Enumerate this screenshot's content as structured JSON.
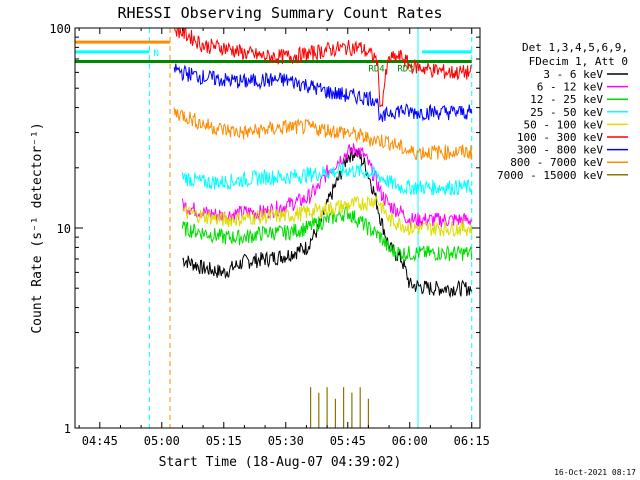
{
  "chart_data": {
    "type": "line",
    "title": "RHESSI Observing Summary Count Rates",
    "xlabel": "Start Time (18-Aug-07 04:39:02)",
    "ylabel": "Count Rate (s⁻¹ detector⁻¹)",
    "yscale": "log",
    "ylim": [
      1,
      100
    ],
    "xlim_minutes": [
      "04:39",
      "06:17"
    ],
    "x_ticks": [
      "04:45",
      "05:00",
      "05:15",
      "05:30",
      "05:45",
      "06:00",
      "06:15"
    ],
    "x_tick_minutes": [
      285,
      300,
      315,
      330,
      345,
      360,
      375
    ],
    "y_ticks": [
      "1",
      "10",
      "100"
    ],
    "y_tick_values": [
      1,
      10,
      100
    ],
    "legend": {
      "position": "right",
      "header": [
        "Det 1,3,4,5,6,9,",
        "FDecim 1, Att 0"
      ],
      "entries": [
        {
          "label": "3 - 6 keV",
          "color": "#000000"
        },
        {
          "label": "6 - 12 keV",
          "color": "#ff00ff"
        },
        {
          "label": "12 - 25 keV",
          "color": "#00dd00"
        },
        {
          "label": "25 - 50 keV",
          "color": "#00ffff"
        },
        {
          "label": "50 - 100 keV",
          "color": "#dddd00"
        },
        {
          "label": "100 - 300 keV",
          "color": "#ff0000"
        },
        {
          "label": "300 - 800 keV",
          "color": "#0000ff"
        },
        {
          "label": "800 - 7000 keV",
          "color": "#ff8c00"
        },
        {
          "label": "7000 - 15000 keV",
          "color": "#8b7500"
        }
      ]
    },
    "series": [
      {
        "label": "3 - 6 keV",
        "color": "#000000",
        "x": [
          305,
          310,
          315,
          320,
          325,
          330,
          335,
          338,
          340,
          343,
          345,
          347,
          349,
          351,
          353,
          355,
          358,
          360,
          365,
          370,
          375
        ],
        "y": [
          7,
          6.3,
          6,
          6.8,
          7,
          7.3,
          8,
          10,
          13,
          18,
          23,
          24,
          21,
          16,
          11,
          8,
          7,
          5.2,
          5,
          5,
          5
        ]
      },
      {
        "label": "6 - 12 keV",
        "color": "#ff00ff",
        "x": [
          305,
          310,
          315,
          320,
          325,
          330,
          335,
          338,
          340,
          343,
          345,
          347,
          349,
          351,
          353,
          355,
          358,
          360,
          365,
          370,
          375
        ],
        "y": [
          13,
          12,
          11.5,
          12,
          12,
          13,
          14,
          16,
          19,
          22,
          24,
          25,
          23,
          19,
          15,
          13,
          12,
          11,
          11,
          11,
          11
        ]
      },
      {
        "label": "12 - 25 keV",
        "color": "#00dd00",
        "x": [
          305,
          310,
          315,
          320,
          325,
          330,
          335,
          340,
          345,
          350,
          353,
          355,
          358,
          360,
          365,
          370,
          375
        ],
        "y": [
          10,
          9.5,
          9,
          9,
          9.5,
          9.5,
          10,
          11,
          12,
          10,
          9,
          7.8,
          7.5,
          7.5,
          7.5,
          7.5,
          7.5
        ]
      },
      {
        "label": "25 - 50 keV",
        "color": "#00ffff",
        "x": [
          305,
          310,
          315,
          320,
          325,
          330,
          335,
          340,
          345,
          350,
          353,
          355,
          358,
          360,
          365,
          370,
          375
        ],
        "y": [
          18,
          17,
          17,
          17.5,
          18,
          18,
          18.5,
          19,
          19.5,
          19,
          18,
          17,
          16,
          16,
          16,
          16,
          16
        ]
      },
      {
        "label": "50 - 100 keV",
        "color": "#dddd00",
        "x": [
          305,
          310,
          315,
          320,
          325,
          330,
          335,
          340,
          345,
          350,
          352,
          355,
          358,
          360,
          365,
          370,
          375
        ],
        "y": [
          12,
          11.5,
          11,
          11.2,
          11.5,
          11.5,
          12,
          12.5,
          13,
          13.5,
          14,
          11,
          10.5,
          10,
          10,
          10,
          10
        ]
      },
      {
        "label": "100 - 300 keV",
        "color": "#ff0000",
        "x": [
          303,
          305,
          308,
          310,
          315,
          320,
          325,
          330,
          335,
          340,
          345,
          348,
          350,
          352,
          353,
          355,
          358,
          360,
          365,
          370,
          375
        ],
        "y": [
          100,
          95,
          88,
          82,
          80,
          75,
          72,
          72,
          74,
          78,
          80,
          80,
          75,
          70,
          38,
          70,
          72,
          65,
          62,
          60,
          60
        ]
      },
      {
        "label": "300 - 800 keV",
        "color": "#0000ff",
        "x": [
          303,
          305,
          310,
          315,
          320,
          325,
          330,
          335,
          340,
          345,
          350,
          352,
          353,
          355,
          358,
          360,
          365,
          370,
          375
        ],
        "y": [
          63,
          60,
          57,
          55,
          54,
          55,
          55,
          52,
          48,
          46,
          45,
          44,
          34,
          38,
          39,
          38,
          38,
          38,
          38
        ]
      },
      {
        "label": "800 - 7000 keV",
        "color": "#ff8c00",
        "x": [
          303,
          305,
          310,
          315,
          320,
          325,
          330,
          335,
          340,
          345,
          350,
          355,
          360,
          365,
          370,
          375
        ],
        "y": [
          38,
          37,
          33,
          31,
          30,
          31,
          32,
          32,
          31,
          30,
          28,
          27,
          24,
          24,
          24,
          24
        ]
      },
      {
        "label": "7000 - 15000 keV",
        "color": "#8b7500",
        "x": [
          336,
          337,
          338,
          339,
          340,
          341,
          342,
          343,
          344,
          345,
          346,
          347,
          348,
          349,
          350,
          351
        ],
        "y": [
          1.6,
          1,
          1.5,
          1,
          1.6,
          1,
          1.4,
          1,
          1.6,
          1,
          1.5,
          1,
          1.6,
          1,
          1.4,
          1
        ]
      }
    ],
    "annotations": [
      {
        "text": "N",
        "x": 298,
        "color": "#00ffff"
      },
      {
        "text": "RD4",
        "x": 350,
        "color": "#008800"
      },
      {
        "text": "RD3",
        "x": 357,
        "color": "#008800"
      }
    ],
    "state_bars": [
      {
        "name": "night",
        "color": "#00ffff",
        "y": 76,
        "x_ranges": [
          [
            279,
            297
          ],
          [
            363,
            375
          ]
        ]
      },
      {
        "name": "saa",
        "color": "#ff8c00",
        "y": 85,
        "x_ranges": [
          [
            279,
            302
          ]
        ]
      },
      {
        "name": "decimation",
        "color": "#008800",
        "y": 68,
        "x_ranges": [
          [
            279,
            375
          ]
        ]
      }
    ],
    "vlines": [
      {
        "x": 297,
        "color": "#00ffff",
        "style": "dashed"
      },
      {
        "x": 302,
        "color": "#ff8c00",
        "style": "dashed"
      },
      {
        "x": 362,
        "color": "#00ffff",
        "style": "solid"
      },
      {
        "x": 375,
        "color": "#00ffff",
        "style": "dashed"
      }
    ]
  },
  "footer": {
    "timestamp": "16-Oct-2021 08:17"
  }
}
